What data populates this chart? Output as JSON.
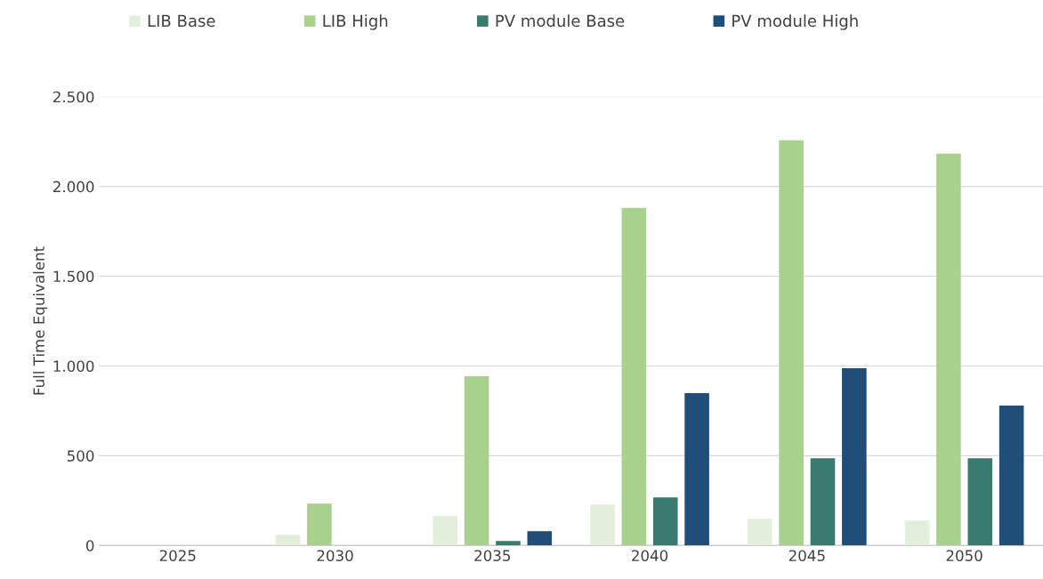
{
  "chart_data": {
    "type": "bar",
    "ylabel": "Full Time Equivalent",
    "categories": [
      "2025",
      "2030",
      "2035",
      "2040",
      "2045",
      "2050"
    ],
    "series": [
      {
        "name": "LIB Base",
        "color": "#e2efda",
        "values": [
          0,
          60,
          164,
          228,
          149,
          139
        ]
      },
      {
        "name": "LIB High",
        "color": "#a9d18e",
        "values": [
          0,
          233,
          943,
          1880,
          2257,
          2183
        ]
      },
      {
        "name": "PV module Base",
        "color": "#3b7a6e",
        "values": [
          0,
          0,
          25,
          268,
          486,
          486
        ]
      },
      {
        "name": "PV module High",
        "color": "#1f4e79",
        "values": [
          0,
          0,
          79,
          848,
          987,
          779
        ]
      }
    ],
    "ylim": [
      0,
      2500
    ],
    "yticks": [
      {
        "value": 0,
        "label": "0"
      },
      {
        "value": 500,
        "label": "500"
      },
      {
        "value": 1000,
        "label": "1.000"
      },
      {
        "value": 1500,
        "label": "1.500"
      },
      {
        "value": 2000,
        "label": "2.000"
      },
      {
        "value": 2500,
        "label": "2.500"
      }
    ],
    "grid": "y",
    "legend": "top left"
  }
}
